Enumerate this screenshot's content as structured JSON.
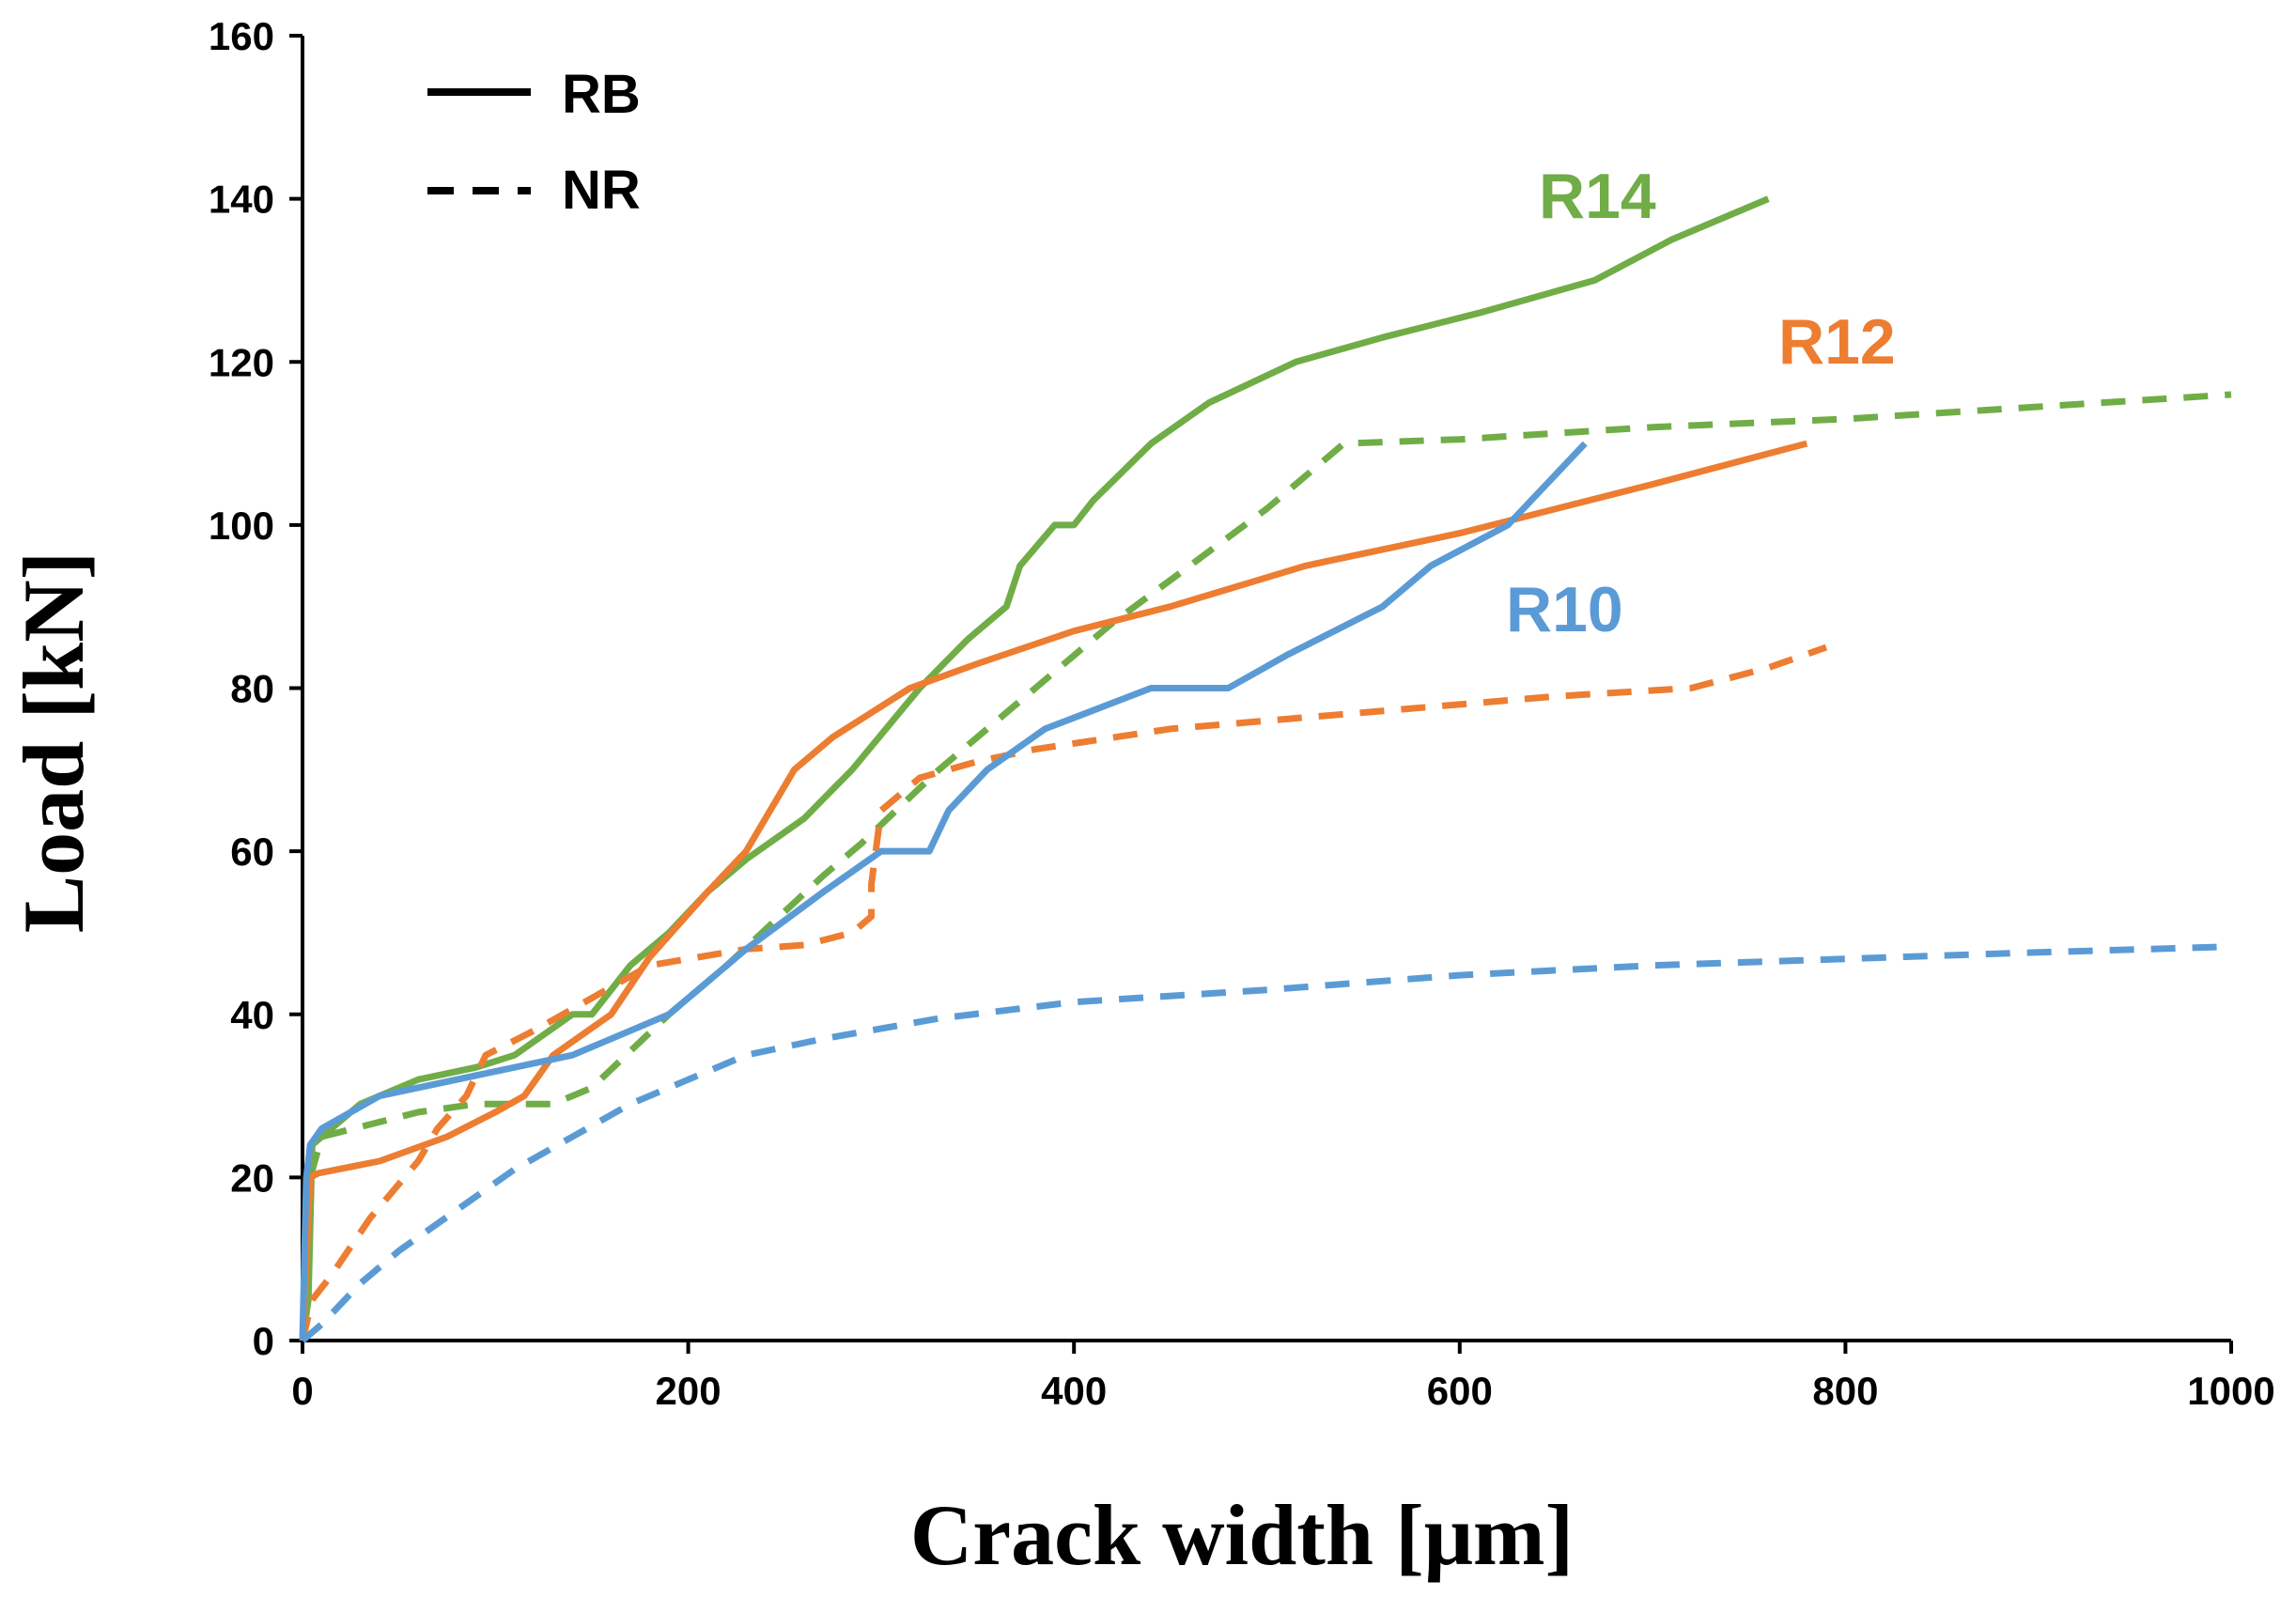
{
  "chart_data": {
    "type": "line",
    "title": "",
    "xlabel": "Crack width [μm]",
    "ylabel": "Load [kN]",
    "xlim": [
      0,
      1000
    ],
    "ylim": [
      0,
      160
    ],
    "xticks": [
      0,
      200,
      400,
      600,
      800,
      1000
    ],
    "yticks": [
      0,
      20,
      40,
      60,
      80,
      100,
      120,
      140,
      160
    ],
    "grid": false,
    "legend": {
      "position": "top-left",
      "entries": [
        {
          "label": "RB",
          "style": "solid"
        },
        {
          "label": "NR",
          "style": "dashed"
        }
      ]
    },
    "series_labels": [
      {
        "text": "R14",
        "color": "#70ad47"
      },
      {
        "text": "R12",
        "color": "#ed7d31"
      },
      {
        "text": "R10",
        "color": "#5b9bd5"
      }
    ],
    "series": [
      {
        "name": "R14 RB",
        "color": "#70ad47",
        "style": "solid",
        "x": [
          0,
          3,
          5,
          30,
          60,
          90,
          110,
          140,
          150,
          170,
          190,
          210,
          230,
          260,
          285,
          320,
          345,
          365,
          372,
          390,
          400,
          410,
          440,
          470,
          515,
          560,
          610,
          670,
          710,
          760
        ],
        "y": [
          0,
          5,
          24,
          29,
          32,
          33.5,
          35,
          40,
          40,
          46,
          50,
          55,
          59,
          64,
          70,
          80,
          86,
          90,
          95,
          100,
          100,
          103,
          110,
          115,
          120,
          123,
          126,
          130,
          135,
          140
        ]
      },
      {
        "name": "R14 NR",
        "color": "#70ad47",
        "style": "dashed",
        "x": [
          0,
          4,
          10,
          60,
          90,
          130,
          150,
          190,
          220,
          270,
          290,
          330,
          380,
          420,
          460,
          500,
          540,
          600,
          700,
          800,
          900,
          1000
        ],
        "y": [
          0,
          20,
          25,
          28,
          29,
          29,
          31,
          40,
          46,
          57,
          61,
          70,
          80,
          88,
          95,
          102,
          110,
          110.5,
          112,
          113,
          114.5,
          116
        ]
      },
      {
        "name": "R12 RB",
        "color": "#ed7d31",
        "style": "solid",
        "x": [
          0,
          4,
          8,
          40,
          75,
          100,
          115,
          130,
          160,
          180,
          210,
          230,
          255,
          275,
          315,
          350,
          400,
          450,
          520,
          600,
          700,
          780
        ],
        "y": [
          0,
          20,
          20.5,
          22,
          25,
          28,
          30,
          35,
          40,
          47,
          55,
          60,
          70,
          74,
          80,
          83,
          87,
          90,
          95,
          99,
          105,
          110
        ]
      },
      {
        "name": "R12 NR",
        "color": "#ed7d31",
        "style": "dashed",
        "x": [
          0,
          5,
          15,
          35,
          60,
          70,
          85,
          95,
          120,
          150,
          180,
          230,
          260,
          285,
          295,
          295,
          300,
          320,
          350,
          380,
          450,
          550,
          650,
          720,
          760,
          790
        ],
        "y": [
          0,
          5,
          8,
          15,
          22,
          26,
          30,
          35,
          38,
          42,
          46,
          48,
          48.5,
          50,
          52,
          56,
          65,
          69,
          71,
          72.5,
          75,
          77,
          79,
          80,
          82.5,
          85
        ]
      },
      {
        "name": "R10 RB",
        "color": "#5b9bd5",
        "style": "solid",
        "x": [
          0,
          2,
          4,
          10,
          40,
          80,
          140,
          190,
          230,
          270,
          300,
          325,
          335,
          355,
          385,
          440,
          480,
          510,
          560,
          585,
          625,
          665
        ],
        "y": [
          0,
          20,
          24,
          26,
          30,
          32,
          35,
          40,
          48,
          55,
          60,
          60,
          65,
          70,
          75,
          80,
          80,
          84,
          90,
          95,
          100,
          110
        ]
      },
      {
        "name": "R10 NR",
        "color": "#5b9bd5",
        "style": "dashed",
        "x": [
          0,
          10,
          30,
          50,
          80,
          110,
          140,
          170,
          200,
          230,
          270,
          330,
          400,
          500,
          600,
          700,
          800,
          900,
          1000
        ],
        "y": [
          0,
          2,
          7,
          11,
          16,
          21,
          25,
          29,
          32,
          35,
          37,
          39.5,
          41.5,
          43,
          44.8,
          46,
          46.8,
          47.6,
          48.3
        ]
      }
    ]
  }
}
